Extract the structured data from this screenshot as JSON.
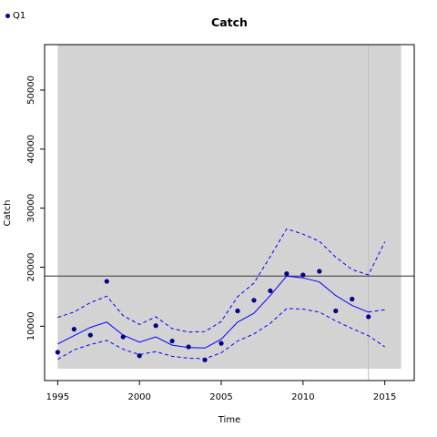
{
  "chart_data": {
    "type": "line",
    "title": "Catch",
    "xlabel": "Time",
    "ylabel": "Catch",
    "xlim": [
      1994.2,
      2016.8
    ],
    "ylim": [
      800,
      57700
    ],
    "panel_x": [
      1995,
      2016
    ],
    "panel_y": [
      2800,
      57700
    ],
    "vline_x": 2014,
    "hline_y": 18500,
    "xticks": [
      1995,
      2000,
      2005,
      2010,
      2015
    ],
    "yticks": [
      10000,
      20000,
      30000,
      40000,
      50000
    ],
    "legend": {
      "position": "top-left",
      "entries": [
        {
          "label": "Q1",
          "color": "#00008b"
        }
      ]
    },
    "series": [
      {
        "name": "Q1",
        "kind": "points",
        "color": "#00008b",
        "x": [
          1995,
          1996,
          1997,
          1998,
          1999,
          2000,
          2001,
          2002,
          2003,
          2004,
          2005,
          2006,
          2007,
          2008,
          2009,
          2010,
          2011,
          2012,
          2013,
          2014
        ],
        "values": [
          5600,
          9500,
          8500,
          17600,
          8200,
          5000,
          10100,
          7500,
          6500,
          4300,
          7100,
          12600,
          14400,
          16000,
          18900,
          18700,
          19300,
          12600,
          14600,
          11600
        ]
      },
      {
        "name": "",
        "kind": "line",
        "color": "#0000ff",
        "x": [
          1995,
          1996,
          1997,
          1998,
          1999,
          2000,
          2001,
          2002,
          2003,
          2004,
          2005,
          2006,
          2007,
          2008,
          2009,
          2010,
          2011,
          2012,
          2013,
          2014
        ],
        "values": [
          7000,
          8400,
          9800,
          10700,
          8500,
          7300,
          8200,
          6800,
          6400,
          6300,
          7800,
          10700,
          12200,
          15200,
          18500,
          18200,
          17500,
          15200,
          13500,
          12400
        ]
      },
      {
        "name": "",
        "kind": "dashed",
        "color": "#0000ff",
        "x": [
          1995,
          1996,
          1997,
          1998,
          1999,
          2000,
          2001,
          2002,
          2003,
          2004,
          2005,
          2006,
          2007,
          2008,
          2009,
          2010,
          2011,
          2012,
          2013,
          2014,
          2015
        ],
        "values": [
          11500,
          12400,
          14000,
          15100,
          11800,
          10300,
          11600,
          9600,
          9000,
          9100,
          10800,
          15000,
          17300,
          21800,
          26500,
          25600,
          24400,
          21700,
          19600,
          18700,
          24300
        ]
      },
      {
        "name": "",
        "kind": "dashed",
        "color": "#0000ff",
        "x": [
          1995,
          1996,
          1997,
          1998,
          1999,
          2000,
          2001,
          2002,
          2003,
          2004,
          2005,
          2006,
          2007,
          2008,
          2009,
          2010,
          2011,
          2012,
          2013,
          2014,
          2015
        ],
        "values": [
          4400,
          6000,
          6900,
          7600,
          6100,
          5200,
          5700,
          4900,
          4600,
          4500,
          5500,
          7500,
          8700,
          10500,
          13000,
          12900,
          12400,
          10900,
          9600,
          8400,
          6500
        ]
      },
      {
        "name": "",
        "kind": "dashed",
        "color": "#0000ff",
        "x": [
          2014,
          2015
        ],
        "values": [
          12400,
          12800
        ]
      }
    ]
  }
}
